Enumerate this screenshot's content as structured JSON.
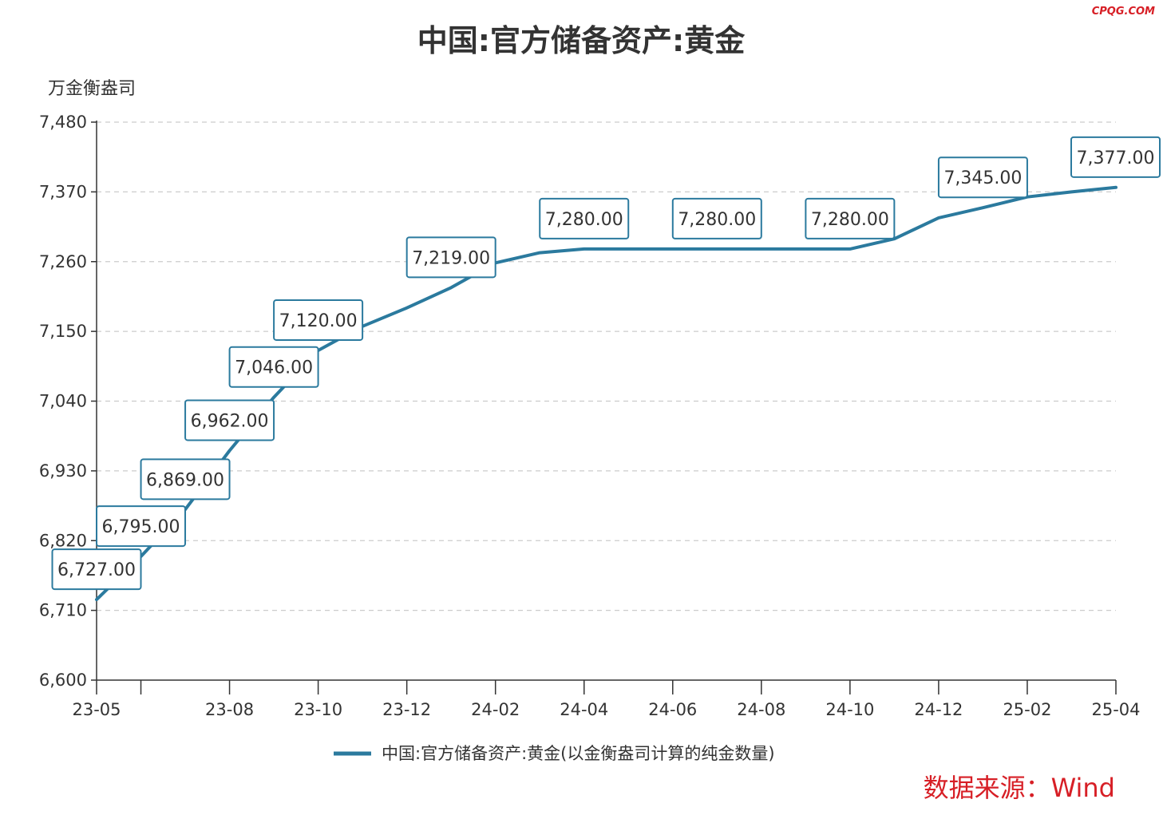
{
  "watermark": "CPQG.COM",
  "colors": {
    "series": "#2b7a9e",
    "label_border": "#2b7a9e",
    "axis": "#333333",
    "grid": "#cccccc",
    "text": "#333333",
    "source": "#d71f26"
  },
  "chart_data": {
    "type": "line",
    "title": "中国:官方储备资产:黄金",
    "unit_label": "万金衡盎司",
    "xlabel": "",
    "ylabel": "万金衡盎司",
    "ylim": [
      6600,
      7480
    ],
    "yticks": [
      6600,
      6710,
      6820,
      6930,
      7040,
      7150,
      7260,
      7370,
      7480
    ],
    "ytick_labels": [
      "6,600",
      "6,710",
      "6,820",
      "6,930",
      "7,040",
      "7,150",
      "7,260",
      "7,370",
      "7,480"
    ],
    "x": [
      "2023-05",
      "2023-06",
      "2023-07",
      "2023-08",
      "2023-09",
      "2023-10",
      "2023-11",
      "2023-12",
      "2024-01",
      "2024-02",
      "2024-03",
      "2024-04",
      "2024-05",
      "2024-06",
      "2024-07",
      "2024-08",
      "2024-09",
      "2024-10",
      "2024-11",
      "2024-12",
      "2025-01",
      "2025-02",
      "2025-03",
      "2025-04"
    ],
    "xtick_labels": [
      {
        "at": "2023-05",
        "label": "23-05"
      },
      {
        "at": "2023-08",
        "label": "23-08"
      },
      {
        "at": "2023-10",
        "label": "23-10"
      },
      {
        "at": "2023-12",
        "label": "23-12"
      },
      {
        "at": "2024-02",
        "label": "24-02"
      },
      {
        "at": "2024-04",
        "label": "24-04"
      },
      {
        "at": "2024-06",
        "label": "24-06"
      },
      {
        "at": "2024-08",
        "label": "24-08"
      },
      {
        "at": "2024-10",
        "label": "24-10"
      },
      {
        "at": "2024-12",
        "label": "24-12"
      },
      {
        "at": "2025-02",
        "label": "25-02"
      },
      {
        "at": "2025-04",
        "label": "25-04"
      }
    ],
    "series": [
      {
        "name": "中国:官方储备资产:黄金(以金衡盎司计算的纯金数量)",
        "values": [
          6727,
          6795,
          6869,
          6962,
          7046,
          7120,
          7158,
          7187,
          7219,
          7258,
          7274,
          7280,
          7280,
          7280,
          7280,
          7280,
          7280,
          7280,
          7296,
          7329,
          7345,
          7362,
          7370,
          7377
        ]
      }
    ],
    "data_labels": [
      {
        "x": "2023-05",
        "text": "6,727.00"
      },
      {
        "x": "2023-06",
        "text": "6,795.00"
      },
      {
        "x": "2023-07",
        "text": "6,869.00"
      },
      {
        "x": "2023-08",
        "text": "6,962.00"
      },
      {
        "x": "2023-09",
        "text": "7,046.00"
      },
      {
        "x": "2023-10",
        "text": "7,120.00"
      },
      {
        "x": "2024-01",
        "text": "7,219.00"
      },
      {
        "x": "2024-04",
        "text": "7,280.00"
      },
      {
        "x": "2024-07",
        "text": "7,280.00"
      },
      {
        "x": "2024-10",
        "text": "7,280.00"
      },
      {
        "x": "2025-01",
        "text": "7,345.00"
      },
      {
        "x": "2025-04",
        "text": "7,377.00"
      }
    ],
    "grid": true,
    "legend_position": "bottom-center"
  },
  "source": "数据来源：Wind"
}
